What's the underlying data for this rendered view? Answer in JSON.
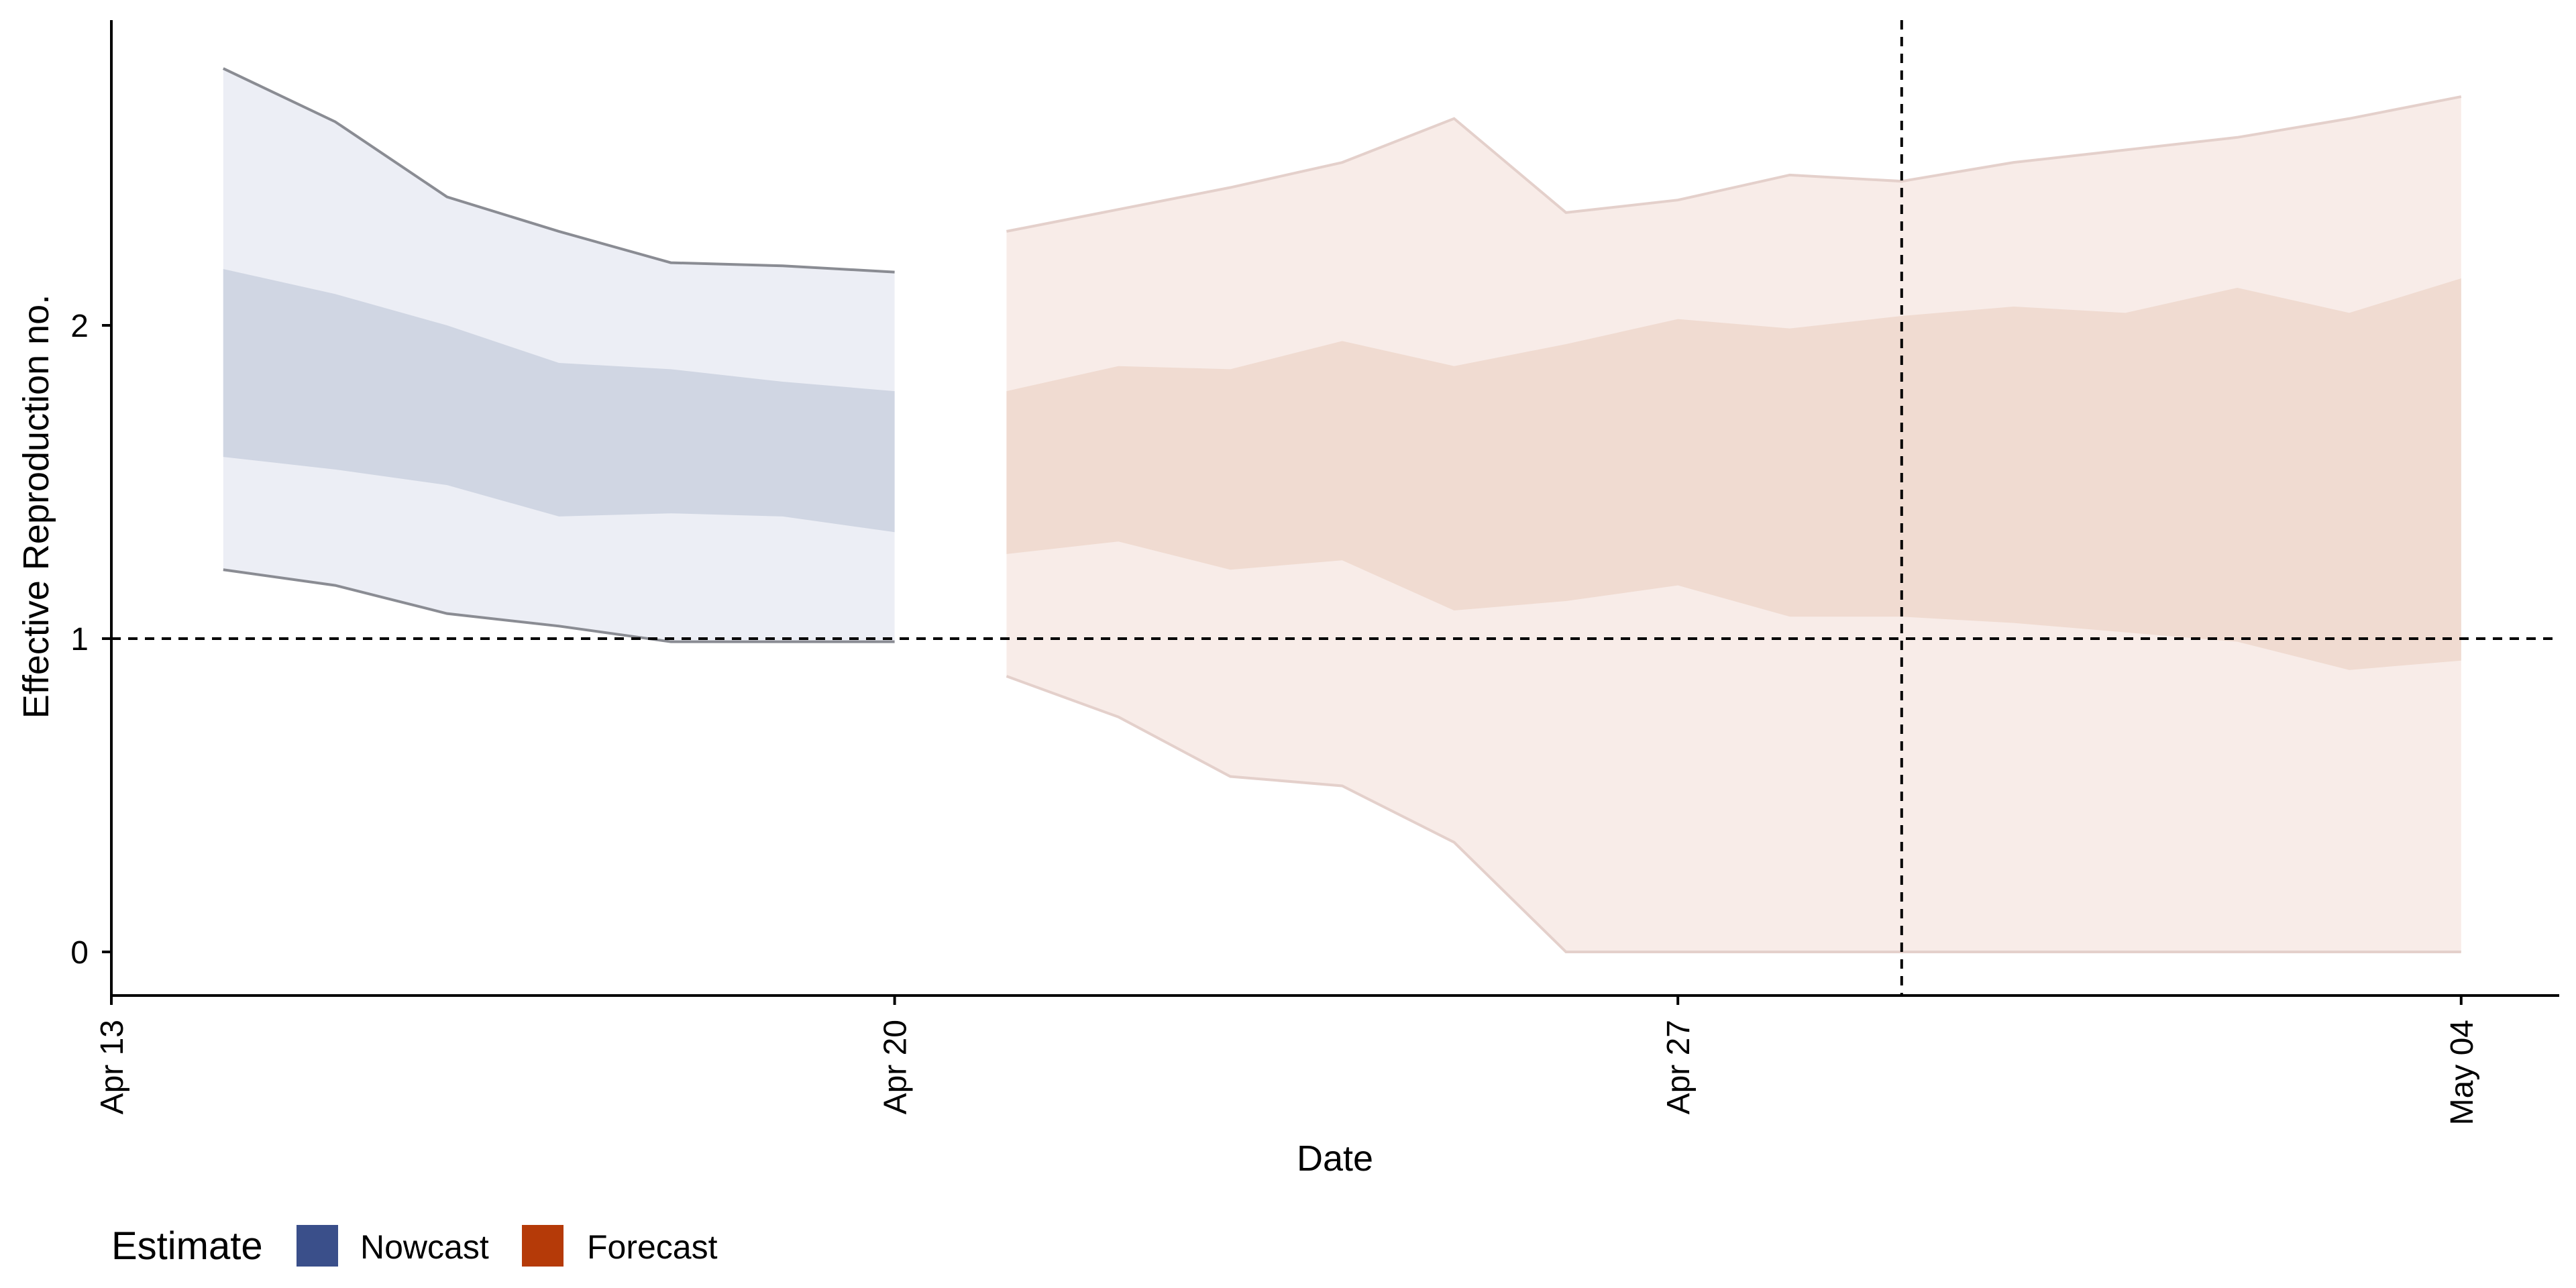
{
  "chart_data": {
    "type": "area",
    "xlabel": "Date",
    "ylabel": "Effective Reproduction no.",
    "x_ticks": [
      "2020-04-13",
      "2020-04-20",
      "2020-04-27",
      "2020-05-04"
    ],
    "x_tick_labels": [
      "Apr 13",
      "Apr 20",
      "Apr 27",
      "May 04"
    ],
    "y_ticks": [
      0,
      1,
      2
    ],
    "y_tick_labels": [
      "0",
      "1",
      "2"
    ],
    "xlim": [
      "2020-04-13",
      "2020-05-14"
    ],
    "ylim": [
      -0.14,
      2.97
    ],
    "grid": false,
    "reference_lines": [
      {
        "axis": "y",
        "value": 1,
        "style": "dashed"
      },
      {
        "axis": "x",
        "value": "2020-04-29",
        "style": "dashed"
      }
    ],
    "legend": {
      "title": "Estimate",
      "position": "bottom-left",
      "entries": [
        {
          "label": "Nowcast",
          "color": "#3a4f8a"
        },
        {
          "label": "Forecast",
          "color": "#b53a08"
        }
      ]
    },
    "series": [
      {
        "name": "Nowcast",
        "color": "#3a4f8a",
        "x": [
          "2020-04-14",
          "2020-04-15",
          "2020-04-16",
          "2020-04-17",
          "2020-04-18",
          "2020-04-19",
          "2020-04-20"
        ],
        "lower_90": [
          1.22,
          1.17,
          1.08,
          1.04,
          0.99,
          0.99,
          0.99
        ],
        "upper_90": [
          2.82,
          2.65,
          2.41,
          2.3,
          2.2,
          2.19,
          2.17
        ],
        "lower_50": [
          1.58,
          1.54,
          1.49,
          1.39,
          1.4,
          1.39,
          1.34
        ],
        "upper_50": [
          2.18,
          2.1,
          2.0,
          1.88,
          1.86,
          1.82,
          1.79
        ]
      },
      {
        "name": "Forecast",
        "color": "#b53a08",
        "x": [
          "2020-04-21",
          "2020-04-22",
          "2020-04-23",
          "2020-04-24",
          "2020-04-25",
          "2020-04-26",
          "2020-04-27",
          "2020-04-28",
          "2020-04-29",
          "2020-04-30",
          "2020-05-01",
          "2020-05-02",
          "2020-05-03",
          "2020-05-04"
        ],
        "lower_90": [
          0.88,
          0.75,
          0.56,
          0.53,
          0.35,
          0.0,
          0.0,
          0.0,
          0.0,
          0.0,
          0.0,
          0.0,
          0.0,
          0.0
        ],
        "upper_90": [
          2.3,
          2.37,
          2.44,
          2.52,
          2.66,
          2.36,
          2.4,
          2.48,
          2.46,
          2.52,
          2.56,
          2.6,
          2.66,
          2.73
        ],
        "lower_50": [
          1.27,
          1.31,
          1.22,
          1.25,
          1.09,
          1.12,
          1.17,
          1.07,
          1.07,
          1.05,
          1.02,
          0.99,
          0.9,
          0.93
        ],
        "upper_50": [
          1.79,
          1.87,
          1.86,
          1.95,
          1.87,
          1.94,
          2.02,
          1.99,
          2.03,
          2.06,
          2.04,
          2.12,
          2.04,
          2.15
        ]
      }
    ]
  }
}
